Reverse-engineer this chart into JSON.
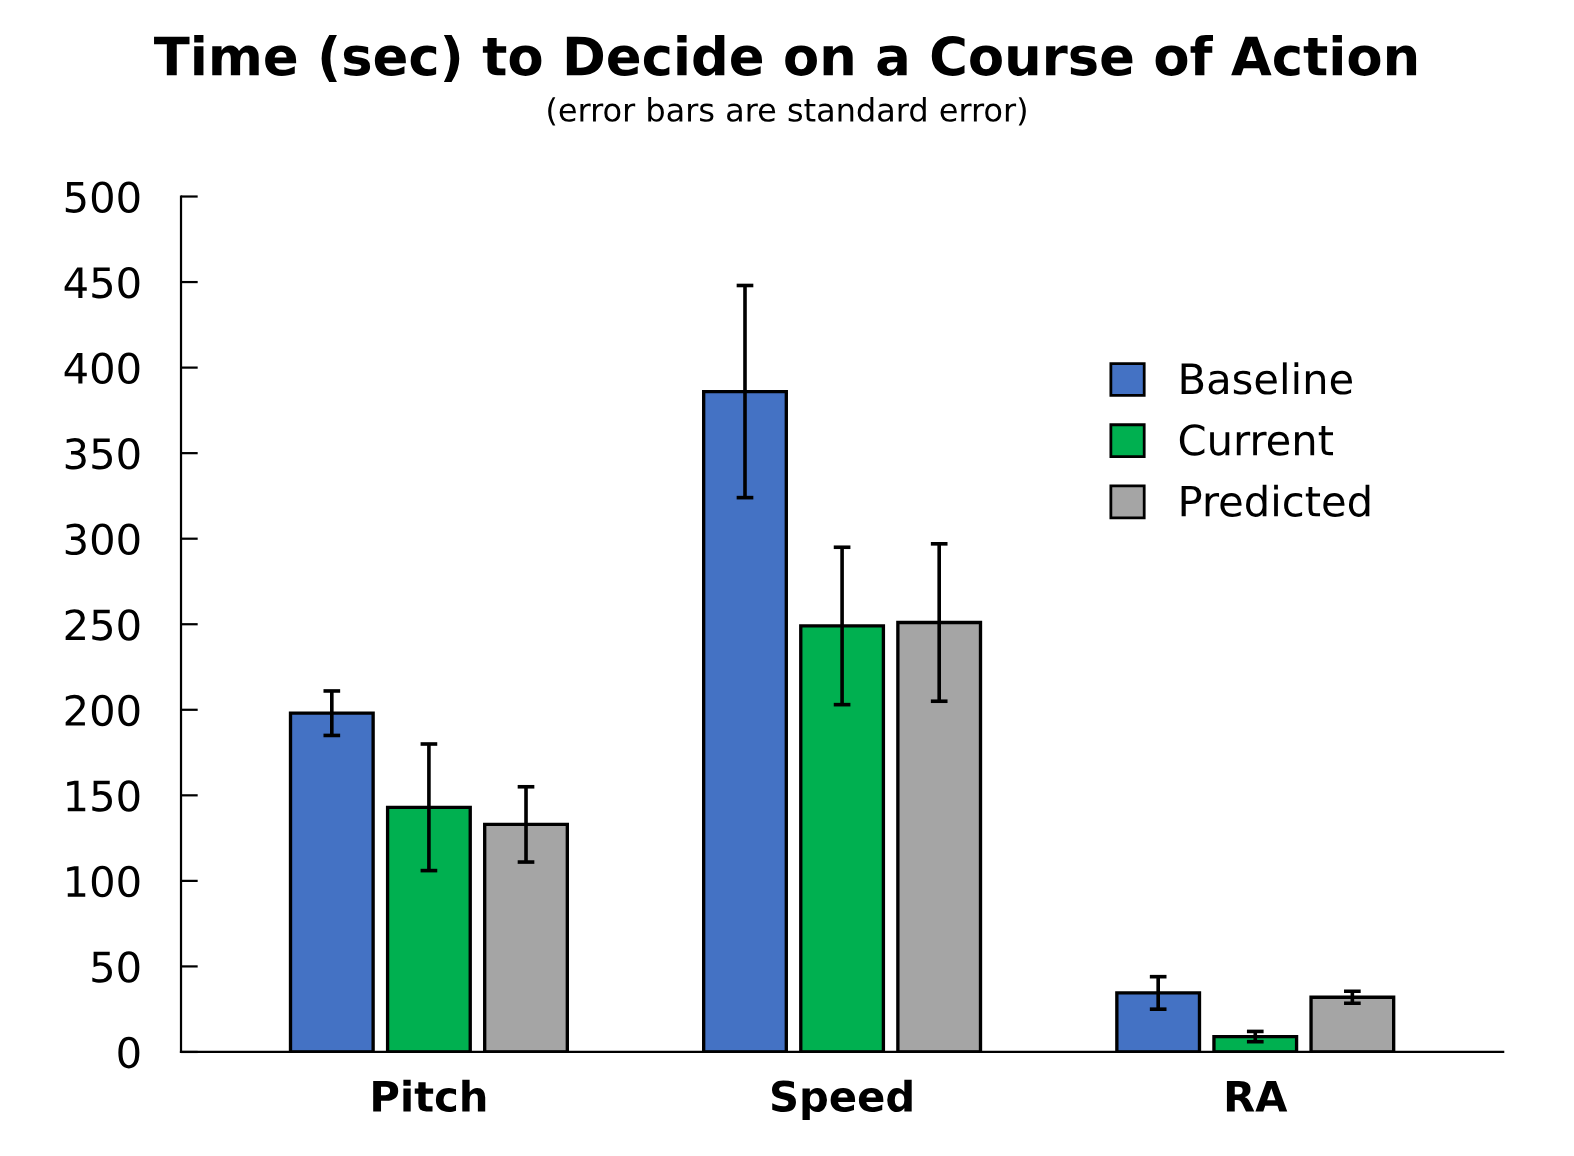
{
  "chart_data": {
    "type": "bar",
    "title": "Time (sec) to Decide on a Course of Action",
    "subtitle": "(error bars are standard error)",
    "categories": [
      "Pitch",
      "Speed",
      "RA"
    ],
    "series": [
      {
        "name": "Baseline",
        "color": "#4472c4",
        "values": [
          198,
          386,
          34.5
        ],
        "errors": [
          13,
          62,
          9.5
        ]
      },
      {
        "name": "Current",
        "color": "#00b050",
        "values": [
          143,
          249,
          9
        ],
        "errors": [
          37,
          46,
          3
        ]
      },
      {
        "name": "Predicted",
        "color": "#a5a5a5",
        "values": [
          133,
          251,
          32
        ],
        "errors": [
          22,
          46,
          3.5
        ]
      }
    ],
    "ylim": [
      0,
      500
    ],
    "yticks": [
      0,
      50,
      100,
      150,
      200,
      250,
      300,
      350,
      400,
      450,
      500
    ],
    "grid": false,
    "legend": "top right"
  }
}
